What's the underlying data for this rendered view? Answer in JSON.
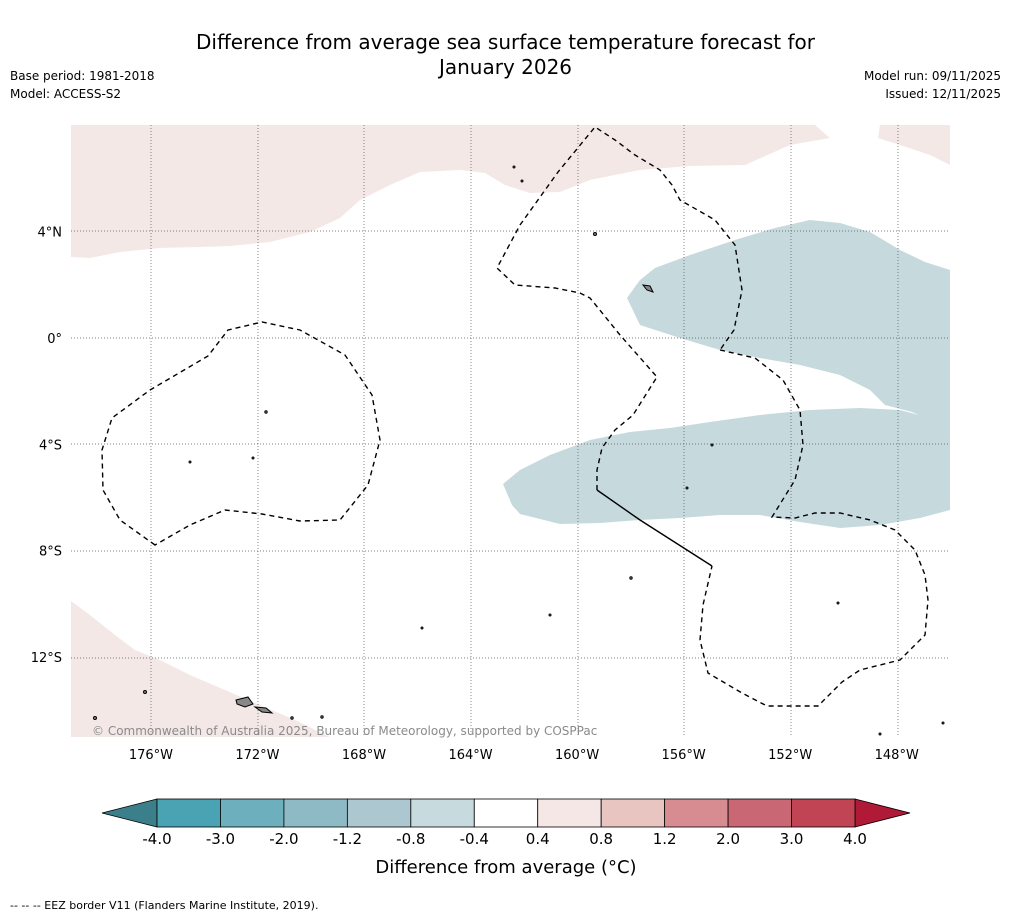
{
  "header": {
    "title_line1": "Difference from average sea surface temperature forecast for",
    "title_line2": "January 2026",
    "base_period": "Base period: 1981-2018",
    "model": "Model: ACCESS-S2",
    "model_run": "Model run: 09/11/2025",
    "issued": "Issued: 12/11/2025"
  },
  "map": {
    "copyright": "© Commonwealth of Australia 2025, Bureau of Meteorology, supported by COSPPac"
  },
  "footer": {
    "eez_note": "-- -- -- EEZ border V11 (Flanders Marine Institute, 2019)."
  },
  "chart_data": {
    "type": "heatmap",
    "title": "Difference from average sea surface temperature forecast for January 2026",
    "x_axis": {
      "ticks": [
        -176,
        -172,
        -168,
        -164,
        -160,
        -156,
        -152,
        -148
      ],
      "tick_labels": [
        "176°W",
        "172°W",
        "168°W",
        "164°W",
        "160°W",
        "156°W",
        "152°W",
        "148°W"
      ],
      "range": [
        -179,
        -146
      ]
    },
    "y_axis": {
      "ticks": [
        4,
        0,
        -4,
        -8,
        -12
      ],
      "tick_labels": [
        "4°N",
        "0°",
        "4°S",
        "8°S",
        "12°S"
      ],
      "range": [
        -15,
        8
      ]
    },
    "colorbar": {
      "label": "Difference from average (°C)",
      "boundaries": [
        -4.0,
        -3.0,
        -2.0,
        -1.2,
        -0.8,
        -0.4,
        0.4,
        0.8,
        1.2,
        2.0,
        3.0,
        4.0
      ],
      "boundary_labels": [
        "-4.0",
        "-3.0",
        "-2.0",
        "-1.2",
        "-0.8",
        "-0.4",
        "0.4",
        "0.8",
        "1.2",
        "2.0",
        "3.0",
        "4.0"
      ],
      "colors": [
        "#4aa3b2",
        "#6dafbd",
        "#8ebac5",
        "#acc7cf",
        "#c7dadd",
        "#ffffff",
        "#f4e7e5",
        "#e8c5c0",
        "#d78c92",
        "#c96874",
        "#c04454"
      ],
      "under_color": "#3a7f8a",
      "over_color": "#b01a36",
      "extend": "both"
    },
    "regions": [
      {
        "name": "warm-region-north",
        "category": "0.4 to 0.8",
        "color": "#f4e8e7"
      },
      {
        "name": "warm-region-southwest",
        "category": "0.4 to 0.8",
        "color": "#f4e8e7"
      },
      {
        "name": "cool-region-east",
        "category": "-0.8 to -0.4",
        "color": "#c6d9dd"
      },
      {
        "name": "cool-region-southeast",
        "category": "-0.8 to -0.4",
        "color": "#c6d9dd"
      }
    ]
  }
}
